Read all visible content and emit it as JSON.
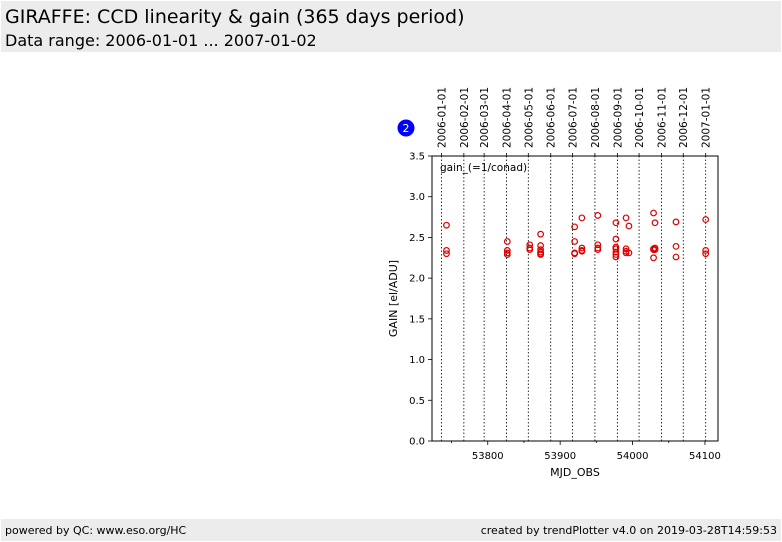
{
  "header": {
    "title": "GIRAFFE: CCD linearity & gain (365 days period)",
    "subtitle": "Data range: 2006-01-01 ... 2007-01-02"
  },
  "footer": {
    "left": "powered by QC: www.eso.org/HC",
    "right": "created by trendPlotter v4.0 on 2019-03-28T14:59:53"
  },
  "colors": {
    "header_bg": "#ececec",
    "marker": "#dd0000",
    "badge": "#0000ff"
  },
  "chart_data": {
    "type": "scatter",
    "title": "",
    "badge": "2",
    "annotation": "gain_(=1/conad)",
    "xlabel": "MJD_OBS",
    "ylabel": "GAIN [el/ADU]",
    "xlim": [
      53723,
      54118
    ],
    "ylim": [
      0.0,
      3.5
    ],
    "xticks": [
      53800,
      53900,
      54000,
      54100
    ],
    "xtick_labels": [
      "53800",
      "53900",
      "54000",
      "54100"
    ],
    "yticks": [
      0.0,
      0.5,
      1.0,
      1.5,
      2.0,
      2.5,
      3.0,
      3.5
    ],
    "ytick_labels": [
      "0.0",
      "0.5",
      "1.0",
      "1.5",
      "2.0",
      "2.5",
      "3.0",
      "3.5"
    ],
    "grid": false,
    "date_lines": [
      {
        "label": "2006-01-01",
        "mjd": 53736
      },
      {
        "label": "2006-02-01",
        "mjd": 53767
      },
      {
        "label": "2006-03-01",
        "mjd": 53795
      },
      {
        "label": "2006-04-01",
        "mjd": 53826
      },
      {
        "label": "2006-05-01",
        "mjd": 53856
      },
      {
        "label": "2006-06-01",
        "mjd": 53887
      },
      {
        "label": "2006-07-01",
        "mjd": 53917
      },
      {
        "label": "2006-08-01",
        "mjd": 53948
      },
      {
        "label": "2006-09-01",
        "mjd": 53979
      },
      {
        "label": "2006-10-01",
        "mjd": 54009
      },
      {
        "label": "2006-11-01",
        "mjd": 54040
      },
      {
        "label": "2006-12-01",
        "mjd": 54070
      },
      {
        "label": "2007-01-01",
        "mjd": 54101
      }
    ],
    "series": [
      {
        "marker": "open-circle",
        "x": [
          53743,
          53743,
          53743,
          53827,
          53827,
          53827,
          53827,
          53858,
          53858,
          53858,
          53873,
          53873,
          53873,
          53873,
          53873,
          53873,
          53920,
          53920,
          53920,
          53920,
          53930,
          53930,
          53930,
          53930,
          53952,
          53952,
          53952,
          53952,
          53977,
          53977,
          53977,
          53977,
          53977,
          53977,
          53977,
          53991,
          53991,
          53991,
          53991,
          53995,
          53995,
          54029,
          54029,
          54029,
          54029,
          54031,
          54031,
          54031,
          54060,
          54060,
          54060,
          54101,
          54101,
          54101
        ],
        "y": [
          2.65,
          2.34,
          2.3,
          2.45,
          2.34,
          2.31,
          2.29,
          2.41,
          2.37,
          2.35,
          2.54,
          2.4,
          2.35,
          2.32,
          2.3,
          2.29,
          2.63,
          2.45,
          2.31,
          2.3,
          2.74,
          2.37,
          2.34,
          2.33,
          2.77,
          2.41,
          2.37,
          2.35,
          2.68,
          2.48,
          2.38,
          2.36,
          2.32,
          2.29,
          2.26,
          2.74,
          2.36,
          2.33,
          2.31,
          2.64,
          2.31,
          2.8,
          2.36,
          2.35,
          2.25,
          2.68,
          2.37,
          2.35,
          2.69,
          2.39,
          2.26,
          2.72,
          2.34,
          2.3
        ]
      }
    ]
  }
}
